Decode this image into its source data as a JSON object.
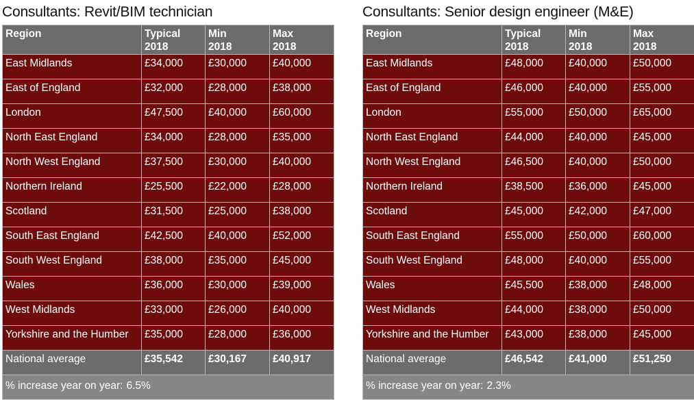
{
  "headers": {
    "region": "Region",
    "typical": [
      "Typical",
      "2018"
    ],
    "min": [
      "Min",
      "2018"
    ],
    "max": [
      "Max",
      "2018"
    ]
  },
  "left": {
    "title": "Consultants: Revit/BIM technician",
    "rows": [
      [
        "East Midlands",
        "£34,000",
        "£30,000",
        "£40,000"
      ],
      [
        "East of England",
        "£32,000",
        "£28,000",
        "£38,000"
      ],
      [
        "London",
        "£47,500",
        "£40,000",
        "£60,000"
      ],
      [
        "North East England",
        "£34,000",
        "£28,000",
        "£35,000"
      ],
      [
        "North West England",
        "£37,500",
        "£30,000",
        "£40,000"
      ],
      [
        "Northern Ireland",
        "£25,500",
        "£22,000",
        "£28,000"
      ],
      [
        "Scotland",
        "£31,500",
        "£25,000",
        "£38,000"
      ],
      [
        "South East England",
        "£42,500",
        "£40,000",
        "£52,000"
      ],
      [
        "South West England",
        "£38,000",
        "£35,000",
        "£45,000"
      ],
      [
        "Wales",
        "£36,000",
        "£30,000",
        "£39,000"
      ],
      [
        "West Midlands",
        "£33,000",
        "£26,000",
        "£40,000"
      ],
      [
        "Yorkshire and the Humber",
        "£35,000",
        "£28,000",
        "£36,000"
      ]
    ],
    "average": [
      "National average",
      "£35,542",
      "£30,167",
      "£40,917"
    ],
    "increase_label": "% increase year on year:",
    "increase_value": "6.5%"
  },
  "right": {
    "title": "Consultants: Senior design engineer (M&E)",
    "rows": [
      [
        "East Midlands",
        "£48,000",
        "£40,000",
        "£50,000"
      ],
      [
        "East of England",
        "£46,000",
        "£40,000",
        "£55,000"
      ],
      [
        "London",
        "£55,000",
        "£50,000",
        "£65,000"
      ],
      [
        "North East England",
        "£44,000",
        "£40,000",
        "£45,000"
      ],
      [
        "North West England",
        "£46,500",
        "£40,000",
        "£50,000"
      ],
      [
        "Northern Ireland",
        "£38,500",
        "£36,000",
        "£45,000"
      ],
      [
        "Scotland",
        "£45,000",
        "£42,000",
        "£47,000"
      ],
      [
        "South East England",
        "£55,000",
        "£50,000",
        "£60,000"
      ],
      [
        "South West England",
        "£48,000",
        "£40,000",
        "£55,000"
      ],
      [
        "Wales",
        "£45,500",
        "£38,000",
        "£48,000"
      ],
      [
        "West Midlands",
        "£44,000",
        "£38,000",
        "£50,000"
      ],
      [
        "Yorkshire and the Humber",
        "£43,000",
        "£38,000",
        "£45,000"
      ]
    ],
    "average": [
      "National average",
      "£46,542",
      "£41,000",
      "£51,250"
    ],
    "increase_label": "% increase year on year:",
    "increase_value": "2.3%"
  },
  "colors": {
    "header_bg": "#6b6c6e",
    "row_bg": "#6e0c0c",
    "footer_bg": "#858687",
    "text": "#ffffff"
  }
}
